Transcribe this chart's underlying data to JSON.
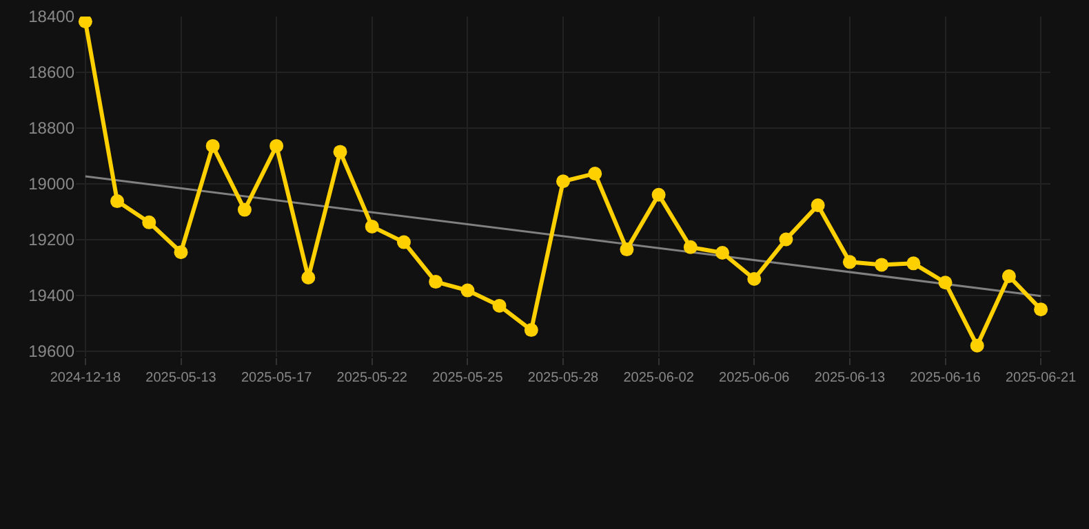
{
  "chart_data": {
    "type": "line",
    "categories": [
      "2024-12-18",
      null,
      null,
      "2025-05-13",
      null,
      null,
      "2025-05-17",
      null,
      null,
      "2025-05-22",
      null,
      null,
      "2025-05-25",
      null,
      null,
      "2025-05-28",
      null,
      null,
      "2025-06-02",
      null,
      null,
      "2025-06-06",
      null,
      null,
      "2025-06-13",
      null,
      null,
      "2025-06-16",
      null,
      null,
      "2025-06-21"
    ],
    "series": [
      {
        "color": "#ffd000",
        "values": [
          18418,
          19062,
          19138,
          19245,
          18864,
          19093,
          18864,
          19336,
          18885,
          19153,
          19209,
          19351,
          19382,
          19437,
          19524,
          18991,
          18963,
          19235,
          19039,
          19227,
          19247,
          19341,
          19199,
          19077,
          19280,
          19290,
          19285,
          19354,
          19580,
          19331,
          19450
        ]
      },
      {
        "type": "line",
        "color": "#808080",
        "marker": "none",
        "values": [
          18973,
          null,
          null,
          null,
          null,
          null,
          null,
          null,
          null,
          null,
          null,
          null,
          null,
          null,
          null,
          null,
          null,
          null,
          null,
          null,
          null,
          null,
          null,
          null,
          null,
          null,
          null,
          null,
          null,
          null,
          19402
        ]
      }
    ],
    "ylim": [
      19620,
      18400
    ],
    "yticks": [
      18400,
      18600,
      18800,
      19000,
      19200,
      19400,
      19600
    ],
    "grid": true,
    "marker": "circle",
    "line_style": "solid"
  }
}
